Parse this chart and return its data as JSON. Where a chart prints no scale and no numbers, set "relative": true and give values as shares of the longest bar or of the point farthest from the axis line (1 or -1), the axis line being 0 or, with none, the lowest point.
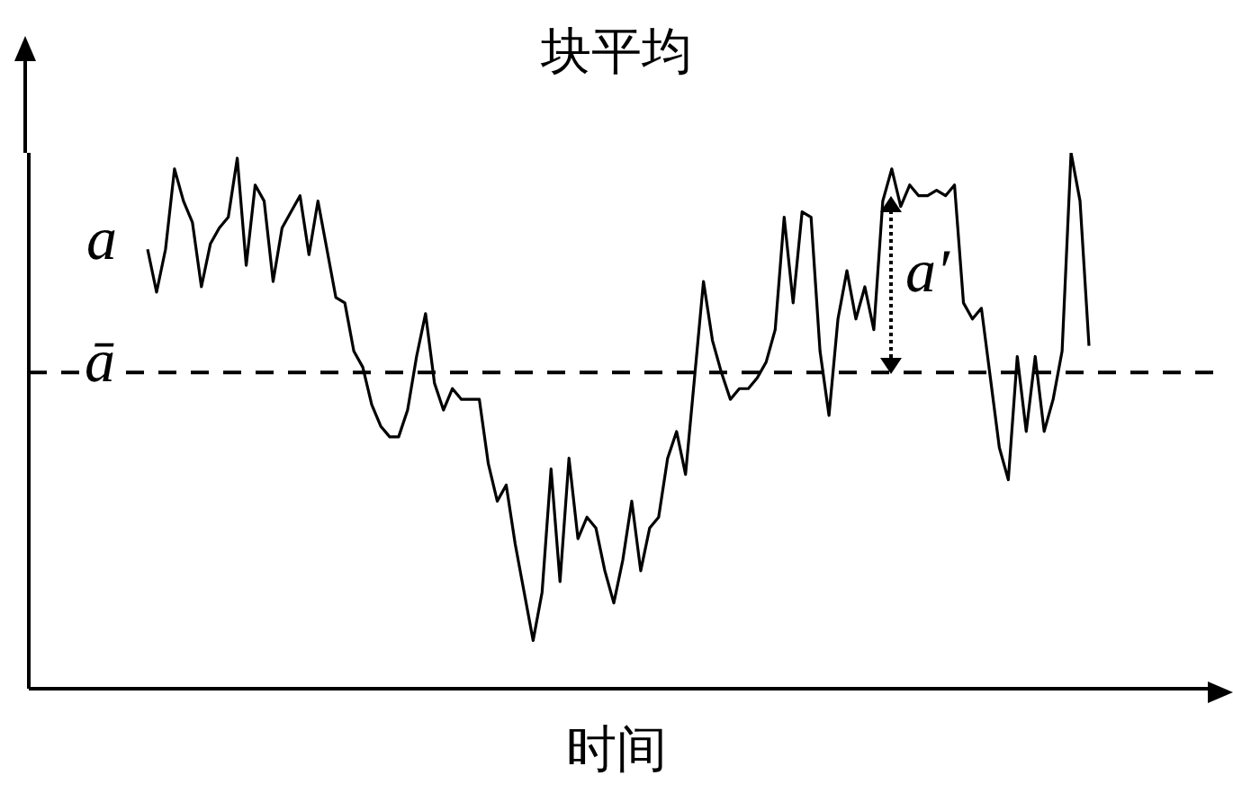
{
  "chart_data": {
    "type": "line",
    "title": "块平均",
    "xlabel": "时间",
    "relative": true,
    "grid": false,
    "legend": "left",
    "marker": "none",
    "line_style": "solid",
    "categories": [
      null,
      null,
      null,
      null,
      null,
      null,
      null,
      null,
      null,
      null,
      null,
      null,
      null,
      null,
      null,
      null,
      null,
      null,
      null,
      null,
      null,
      null,
      null,
      null,
      null,
      null,
      null,
      null,
      null,
      null,
      null,
      null,
      null,
      null,
      null,
      null,
      null,
      null,
      null,
      null,
      null,
      null,
      null,
      null,
      null,
      null,
      null,
      null,
      null,
      null,
      null,
      null,
      null,
      null,
      null,
      null,
      null,
      null,
      null,
      null,
      null,
      null,
      null,
      null,
      null,
      null,
      null,
      null,
      null,
      null,
      null,
      null,
      null,
      null,
      null,
      null,
      null,
      null,
      null,
      null,
      null,
      null,
      null,
      null,
      null,
      null,
      null,
      null,
      null,
      null,
      null,
      null,
      null,
      null,
      null,
      null,
      null,
      null,
      null,
      null,
      null,
      null,
      null,
      null,
      null,
      null
    ],
    "series": [
      {
        "name": "a",
        "color": "#000000",
        "values": [
          0.82,
          0.74,
          0.82,
          0.97,
          0.91,
          0.87,
          0.75,
          0.83,
          0.86,
          0.88,
          0.99,
          0.79,
          0.94,
          0.91,
          0.76,
          0.86,
          0.89,
          0.92,
          0.81,
          0.91,
          0.82,
          0.73,
          0.72,
          0.63,
          0.6,
          0.53,
          0.49,
          0.47,
          0.47,
          0.52,
          0.62,
          0.7,
          0.57,
          0.52,
          0.56,
          0.54,
          0.54,
          0.54,
          0.42,
          0.35,
          0.38,
          0.27,
          0.18,
          0.09,
          0.18,
          0.41,
          0.2,
          0.43,
          0.28,
          0.32,
          0.3,
          0.22,
          0.16,
          0.24,
          0.35,
          0.22,
          0.3,
          0.32,
          0.43,
          0.48,
          0.4,
          0.58,
          0.76,
          0.65,
          0.59,
          0.54,
          0.56,
          0.56,
          0.58,
          0.61,
          0.67,
          0.88,
          0.72,
          0.89,
          0.88,
          0.63,
          0.51,
          0.69,
          0.78,
          0.69,
          0.75,
          0.67,
          0.91,
          0.97,
          0.9,
          0.94,
          0.92,
          0.92,
          0.93,
          0.92,
          0.94,
          0.72,
          0.69,
          0.71,
          0.58,
          0.45,
          0.39,
          0.62,
          0.48,
          0.62,
          0.48,
          0.54,
          0.63,
          1,
          0.91,
          0.64
        ]
      }
    ],
    "ref_lines": [
      {
        "axis": "y",
        "value": 0.59,
        "label": "ā",
        "color": "#000000",
        "line_style": "dashed"
      }
    ],
    "annotations": [
      "a′"
    ]
  }
}
